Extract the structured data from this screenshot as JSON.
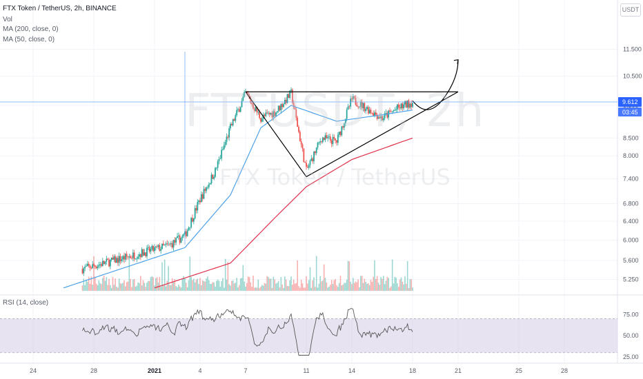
{
  "header": {
    "title": "FTX Token / TetherUS, 2h, BINANCE",
    "indicators": [
      "Vol",
      "MA (200, close, 0)",
      "MA (50, close, 0)"
    ],
    "rsi_label": "RSI (14, close)",
    "currency": "USDT"
  },
  "watermark": {
    "symbol": "FTTUSDT, 2h",
    "description": "FTX Token / TetherUS"
  },
  "colors": {
    "up": "#26a69a",
    "down": "#ef5350",
    "ma50": "#4ea2e8",
    "ma200": "#e0314b",
    "rsi": "#555555",
    "rsi_band": "#d9d1e7",
    "crosshair": "#5b9cf6",
    "badge": "#2962ff",
    "pattern": "#000000"
  },
  "chart_data": {
    "type": "candlestick",
    "price_scale": "log",
    "ylim": [
      5.05,
      12.8
    ],
    "y_ticks": [
      "11.500",
      "10.500",
      "9.500",
      "8.500",
      "8.000",
      "7.400",
      "6.800",
      "6.400",
      "6.000",
      "5.600",
      "5.250"
    ],
    "x_ticks": [
      {
        "label": "24",
        "bold": false
      },
      {
        "label": "28",
        "bold": false
      },
      {
        "label": "2021",
        "bold": true
      },
      {
        "label": "4",
        "bold": false
      },
      {
        "label": "7",
        "bold": false
      },
      {
        "label": "11",
        "bold": false
      },
      {
        "label": "14",
        "bold": false
      },
      {
        "label": "18",
        "bold": false
      },
      {
        "label": "21",
        "bold": false
      },
      {
        "label": "25",
        "bold": false
      },
      {
        "label": "28",
        "bold": false
      }
    ],
    "last_price": "9.612",
    "countdown": "03:45",
    "rsi_scale": [
      25,
      85
    ],
    "rsi_ticks": [
      "75.00",
      "50.00",
      "25.00"
    ],
    "rsi_band": [
      30,
      70
    ],
    "price_path": [
      {
        "date": "2020-12-22",
        "price": 5.15
      },
      {
        "date": "2020-12-26",
        "price": 5.35
      },
      {
        "date": "2020-12-30",
        "price": 5.65
      },
      {
        "date": "2021-01-02",
        "price": 5.9
      },
      {
        "date": "2021-01-03",
        "price": 6.1
      },
      {
        "date": "2021-01-04",
        "price": 6.9
      },
      {
        "date": "2021-01-05",
        "price": 7.6
      },
      {
        "date": "2021-01-06",
        "price": 8.8
      },
      {
        "date": "2021-01-07",
        "price": 9.9
      },
      {
        "date": "2021-01-08",
        "price": 9.1
      },
      {
        "date": "2021-01-09",
        "price": 9.3
      },
      {
        "date": "2021-01-10",
        "price": 9.9
      },
      {
        "date": "2021-01-11",
        "price": 7.6
      },
      {
        "date": "2021-01-12",
        "price": 8.5
      },
      {
        "date": "2021-01-13",
        "price": 8.4
      },
      {
        "date": "2021-01-14",
        "price": 9.7
      },
      {
        "date": "2021-01-15",
        "price": 9.4
      },
      {
        "date": "2021-01-16",
        "price": 9.1
      },
      {
        "date": "2021-01-17",
        "price": 9.4
      },
      {
        "date": "2021-01-18",
        "price": 9.612
      }
    ],
    "ma50_path": [
      {
        "date": "2020-12-26",
        "price": 5.1
      },
      {
        "date": "2021-01-03",
        "price": 5.85
      },
      {
        "date": "2021-01-06",
        "price": 7.0
      },
      {
        "date": "2021-01-08",
        "price": 8.8
      },
      {
        "date": "2021-01-10",
        "price": 9.5
      },
      {
        "date": "2021-01-13",
        "price": 9.0
      },
      {
        "date": "2021-01-16",
        "price": 9.2
      },
      {
        "date": "2021-01-18",
        "price": 9.35
      }
    ],
    "ma200_path": [
      {
        "date": "2021-01-01",
        "price": 5.1
      },
      {
        "date": "2021-01-06",
        "price": 5.55
      },
      {
        "date": "2021-01-09",
        "price": 6.5
      },
      {
        "date": "2021-01-11",
        "price": 7.2
      },
      {
        "date": "2021-01-14",
        "price": 7.9
      },
      {
        "date": "2021-01-18",
        "price": 8.5
      }
    ],
    "drawings": {
      "resistance": [
        {
          "date": "2021-01-07",
          "price": 9.95
        },
        {
          "date": "2021-01-21",
          "price": 9.95
        }
      ],
      "support": [
        {
          "date": "2021-01-11",
          "price": 7.45
        },
        {
          "date": "2021-01-21",
          "price": 9.95
        }
      ],
      "left_leg": [
        {
          "date": "2021-01-07",
          "price": 9.95
        },
        {
          "date": "2021-01-11",
          "price": 7.45
        }
      ],
      "projection": [
        {
          "date": "2021-01-18",
          "price": 9.65
        },
        {
          "date": "2021-01-19",
          "price": 9.45
        },
        {
          "date": "2021-01-20",
          "price": 9.7
        },
        {
          "date": "2021-01-21",
          "price": 11.1
        }
      ]
    }
  }
}
